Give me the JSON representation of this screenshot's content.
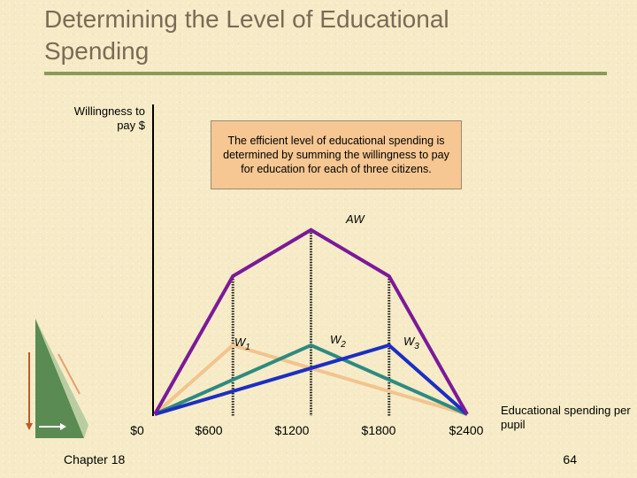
{
  "slide": {
    "title": "Determining the Level of Educational Spending",
    "footer_left": "Chapter 18",
    "page_number": "64"
  },
  "callout": {
    "text": "The efficient level of educational spending is determined by summing the willingness to pay for education for each of three citizens."
  },
  "chart_data": {
    "type": "line",
    "ylabel": "Willingness to pay $",
    "xlabel": "Educational spending per pupil",
    "x_ticks": [
      "$0",
      "$600",
      "$1200",
      "$1800",
      "$2400"
    ],
    "colors": {
      "W1": "#f2c48e",
      "W2": "#2e8a80",
      "W3": "#1c2ec2",
      "AW": "#7b1a99"
    },
    "series": [
      {
        "name": "W",
        "subscript": "1",
        "points": [
          [
            0,
            0
          ],
          [
            600,
            1
          ],
          [
            2400,
            0
          ]
        ]
      },
      {
        "name": "W",
        "subscript": "2",
        "points": [
          [
            0,
            0
          ],
          [
            1200,
            1
          ],
          [
            2400,
            0
          ]
        ]
      },
      {
        "name": "W",
        "subscript": "3",
        "points": [
          [
            0,
            0
          ],
          [
            1800,
            1
          ],
          [
            2400,
            0
          ]
        ]
      },
      {
        "name": "AW",
        "subscript": "",
        "points": [
          [
            0,
            0
          ],
          [
            600,
            2
          ],
          [
            1200,
            2.67
          ],
          [
            1800,
            2
          ],
          [
            2400,
            0
          ]
        ]
      }
    ]
  }
}
